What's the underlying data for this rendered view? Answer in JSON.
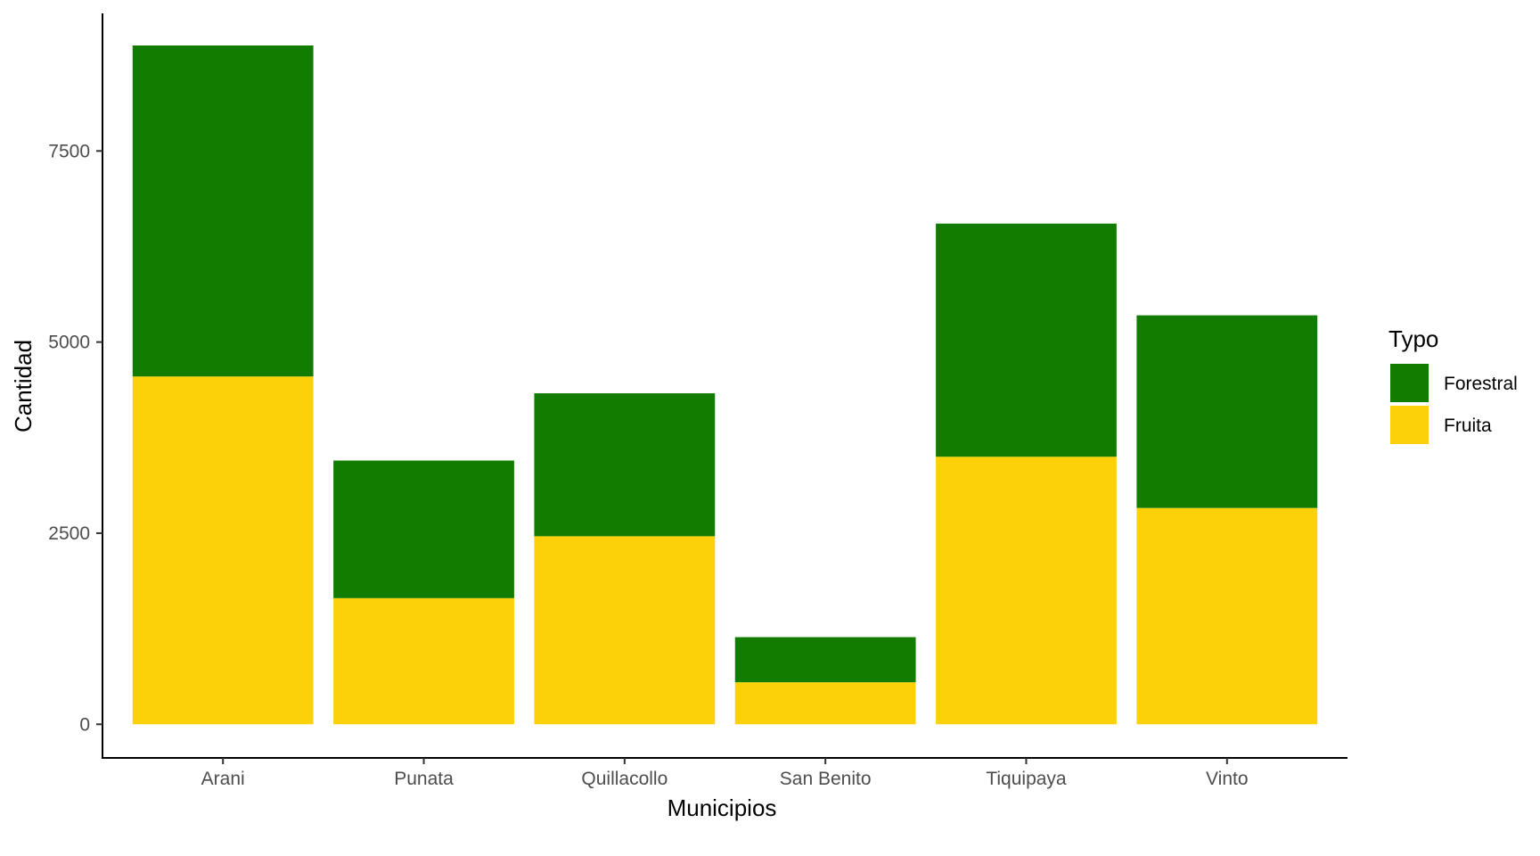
{
  "chart_data": {
    "type": "bar",
    "stacked": true,
    "categories": [
      "Arani",
      "Punata",
      "Quillacollo",
      "San Benito",
      "Tiquipaya",
      "Vinto"
    ],
    "series": [
      {
        "name": "Forestral",
        "color": "#117C00",
        "values": [
          4330,
          1800,
          1870,
          590,
          3050,
          2520
        ]
      },
      {
        "name": "Fruita",
        "color": "#FDD10A",
        "values": [
          4550,
          1650,
          2460,
          550,
          3500,
          2830
        ]
      }
    ],
    "xlabel": "Municipios",
    "ylabel": "Cantidad",
    "ylim": [
      -440,
      9300
    ],
    "yticks": [
      0,
      2500,
      5000,
      7500
    ],
    "grid": false,
    "legend": {
      "title": "Typo",
      "placement": "right"
    }
  }
}
